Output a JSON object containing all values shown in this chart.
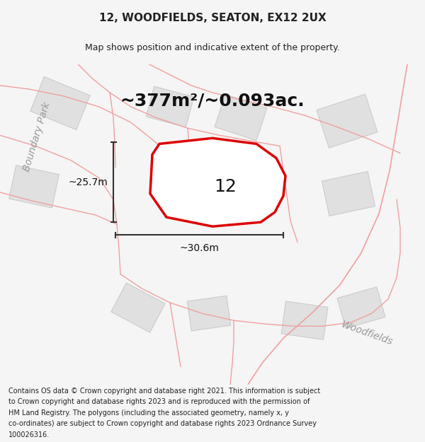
{
  "title": "12, WOODFIELDS, SEATON, EX12 2UX",
  "subtitle": "Map shows position and indicative extent of the property.",
  "area_text": "~377m²/~0.093ac.",
  "label_12": "12",
  "dim_vertical": "~25.7m",
  "dim_horizontal": "~30.6m",
  "road_label_left": "Boundary Park",
  "road_label_right": "Woodfields",
  "footer_lines": [
    "Contains OS data © Crown copyright and database right 2021. This information is subject",
    "to Crown copyright and database rights 2023 and is reproduced with the permission of",
    "HM Land Registry. The polygons (including the associated geometry, namely x, y",
    "co-ordinates) are subject to Crown copyright and database rights 2023 Ordnance Survey",
    "100026316."
  ],
  "bg_color": "#f5f5f5",
  "map_bg": "#ffffff",
  "plot_color_red": "#dd0000",
  "plot_fill": "#ffffff",
  "neighbor_fill": "#e0e0e0",
  "neighbor_stroke": "#cccccc",
  "road_color": "#f0a0a0",
  "title_fontsize": 11,
  "subtitle_fontsize": 9,
  "area_fontsize": 18,
  "label_fontsize": 18,
  "dim_fontsize": 10,
  "road_label_fontsize": 10,
  "footer_fontsize": 7
}
